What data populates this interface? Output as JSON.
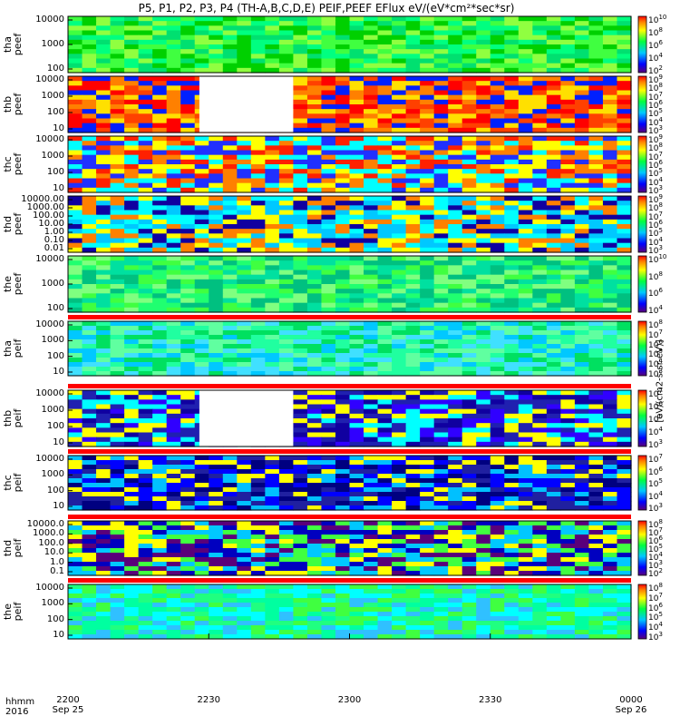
{
  "title": "P5, P1, P2, P3, P4 (TH-A,B,C,D,E) PEIF,PEEF EFlux eV/(eV*cm²*sec*sr)",
  "colorbar_unit_label": "[eV/(cm2-s-sr-eV)]",
  "x_axis": {
    "row_label": "hhmm",
    "year_label": "2016",
    "ticks": [
      {
        "t": 0,
        "hhmm": "2200",
        "date": "Sep 25"
      },
      {
        "t": 30,
        "hhmm": "2230",
        "date": ""
      },
      {
        "t": 60,
        "hhmm": "2300",
        "date": ""
      },
      {
        "t": 90,
        "hhmm": "2330",
        "date": ""
      },
      {
        "t": 120,
        "hhmm": "0000",
        "date": "Sep 26"
      }
    ]
  },
  "chart_data": [
    {
      "type": "heatmap",
      "probe": "tha",
      "product": "peef",
      "ylabel": "tha peef",
      "y_scale": "log",
      "yticks": [
        "10000",
        "1000",
        "100"
      ],
      "colorbar": [
        "10^10",
        "10^8",
        "10^6",
        "10^4",
        "10^2"
      ]
    },
    {
      "type": "heatmap",
      "probe": "thb",
      "product": "peef",
      "ylabel": "thb peef",
      "y_scale": "log",
      "yticks": [
        "10000",
        "1000",
        "100",
        "10"
      ],
      "data_gap": [
        28,
        48
      ],
      "colorbar": [
        "10^9",
        "10^8",
        "10^7",
        "10^6",
        "10^5",
        "10^4",
        "10^3"
      ]
    },
    {
      "type": "heatmap",
      "probe": "thc",
      "product": "peef",
      "ylabel": "thc peef",
      "y_scale": "log",
      "yticks": [
        "10000",
        "1000",
        "100",
        "10"
      ],
      "colorbar": [
        "10^9",
        "10^8",
        "10^7",
        "10^6",
        "10^5",
        "10^4",
        "10^3"
      ]
    },
    {
      "type": "heatmap",
      "probe": "thd",
      "product": "peef",
      "ylabel": "thd peef",
      "y_scale": "log",
      "yticks": [
        "10000.00",
        "1000.00",
        "100.00",
        "10.00",
        "1.00",
        "0.10",
        "0.01"
      ],
      "colorbar": [
        "10^9",
        "10^8",
        "10^7",
        "10^6",
        "10^5",
        "10^4",
        "10^3"
      ]
    },
    {
      "type": "heatmap",
      "probe": "the",
      "product": "peef",
      "ylabel": "the peef",
      "y_scale": "log",
      "yticks": [
        "10000",
        "1000",
        "100"
      ],
      "colorbar": [
        "10^10",
        "10^8",
        "10^6",
        "10^4"
      ]
    },
    {
      "type": "heatmap",
      "probe": "tha",
      "product": "peif",
      "ylabel": "tha peif",
      "y_scale": "log",
      "yticks": [
        "10000",
        "1000",
        "100",
        "10"
      ],
      "colorbar": [
        "10^8",
        "10^7",
        "10^6",
        "10^5",
        "10^4",
        "10^3"
      ]
    },
    {
      "type": "heatmap",
      "probe": "thb",
      "product": "peif",
      "ylabel": "thb peif",
      "y_scale": "log",
      "yticks": [
        "10000",
        "1000",
        "100",
        "10"
      ],
      "data_gap": [
        28,
        48
      ],
      "colorbar": [
        "10^7",
        "10^6",
        "10^5",
        "10^4",
        "10^3"
      ]
    },
    {
      "type": "heatmap",
      "probe": "thc",
      "product": "peif",
      "ylabel": "thc peif",
      "y_scale": "log",
      "yticks": [
        "10000",
        "1000",
        "100",
        "10"
      ],
      "colorbar": [
        "10^7",
        "10^6",
        "10^5",
        "10^4",
        "10^3"
      ]
    },
    {
      "type": "heatmap",
      "probe": "thd",
      "product": "peif",
      "ylabel": "thd peif",
      "y_scale": "log",
      "yticks": [
        "10000.0",
        "1000.0",
        "100.0",
        "10.0",
        "1.0",
        "0.1"
      ],
      "colorbar": [
        "10^8",
        "10^7",
        "10^6",
        "10^5",
        "10^4",
        "10^3",
        "10^2"
      ]
    },
    {
      "type": "heatmap",
      "probe": "the",
      "product": "peif",
      "ylabel": "the peif",
      "y_scale": "log",
      "yticks": [
        "10000",
        "1000",
        "100",
        "10"
      ],
      "colorbar": [
        "10^8",
        "10^7",
        "10^6",
        "10^5",
        "10^4",
        "10^3"
      ]
    }
  ]
}
